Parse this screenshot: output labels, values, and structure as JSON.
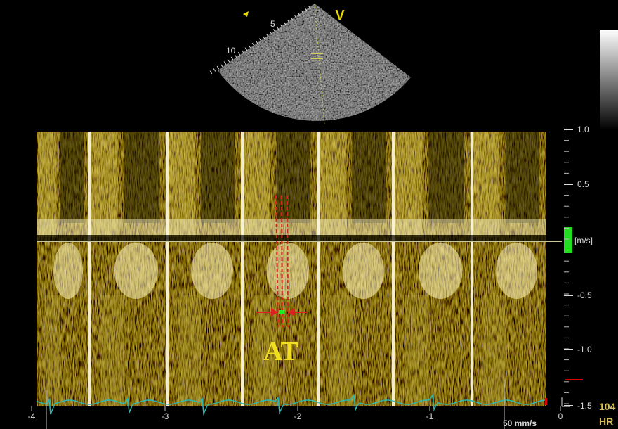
{
  "probe": {
    "marker": "V",
    "depth_labels": [
      "5",
      "10"
    ]
  },
  "spectrum": {
    "annotation": "AT",
    "unit": "[m/s]",
    "velocity_labels": [
      "1.0",
      "0.5",
      "-0.5",
      "-1.0",
      "-1.5"
    ],
    "time_labels": [
      "-4",
      "-3",
      "-2",
      "-1",
      "0"
    ]
  },
  "footer": {
    "sweep_speed": "50 mm/s",
    "heart_rate_value": "104",
    "heart_rate_label": "HR"
  }
}
